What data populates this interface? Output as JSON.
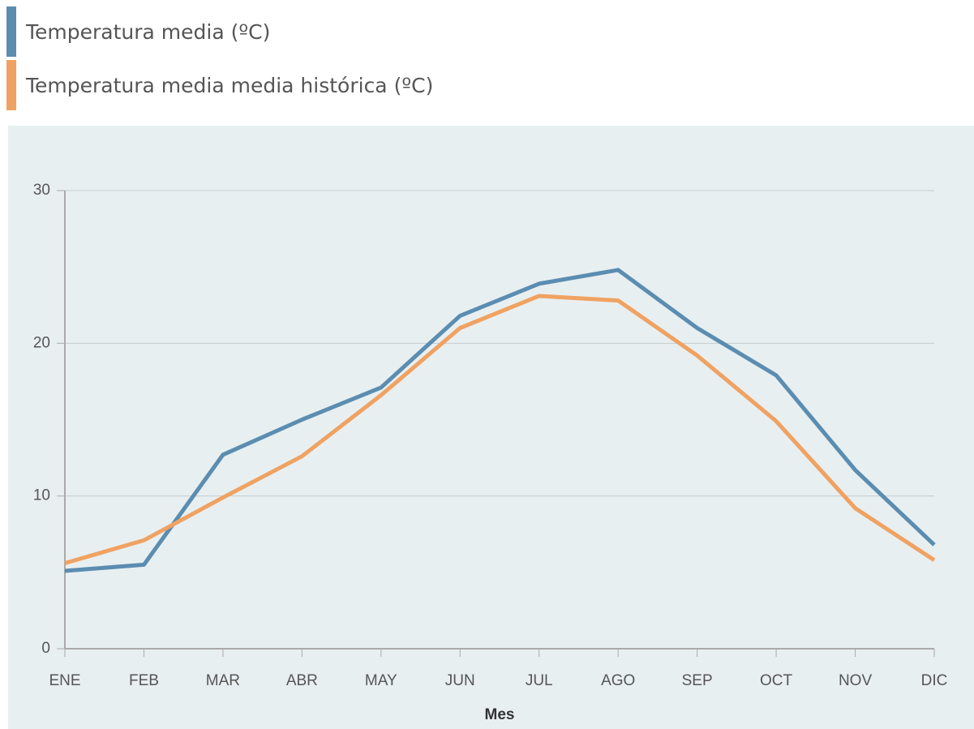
{
  "chart_data": {
    "type": "line",
    "categories": [
      "ENE",
      "FEB",
      "MAR",
      "ABR",
      "MAY",
      "JUN",
      "JUL",
      "AGO",
      "SEP",
      "OCT",
      "NOV",
      "DIC"
    ],
    "series": [
      {
        "name": "Temperatura media (ºC)",
        "color": "#5b8db1",
        "values": [
          5.1,
          5.5,
          12.7,
          15.0,
          17.1,
          21.8,
          23.9,
          24.8,
          21.0,
          17.9,
          11.7,
          6.8
        ]
      },
      {
        "name": "Temperatura media media histórica (ºC)",
        "color": "#f0a262",
        "values": [
          5.6,
          7.1,
          9.9,
          12.6,
          16.6,
          21.0,
          23.1,
          22.8,
          19.2,
          14.9,
          9.2,
          5.8
        ]
      }
    ],
    "x_label": "Mes",
    "ylim": [
      0,
      30
    ],
    "yticks": [
      0,
      10,
      20,
      30
    ],
    "grid": true
  }
}
